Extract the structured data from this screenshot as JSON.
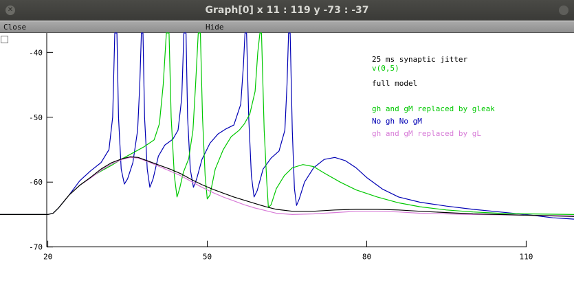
{
  "window": {
    "title": "Graph[0]  x 11 : 119  y -73 : -37",
    "close_icon": "close-icon",
    "maximize_icon": "maximize-icon"
  },
  "menu": {
    "close_label": "Close",
    "hide_label": "Hide"
  },
  "colors": {
    "black": "#000000",
    "green": "#00c800",
    "blue": "#0000b4",
    "pink": "#d77bd7"
  },
  "legend": {
    "jitter": "25 ms synaptic jitter",
    "v": "v(0,5)",
    "full": "full model",
    "gleak": "gh and gM replaced by gleak",
    "nogh": "No gh No gM",
    "gl": "gh and gM replaced by gL"
  },
  "chart_data": {
    "type": "line",
    "xlim": [
      11,
      119
    ],
    "ylim": [
      -73,
      -37
    ],
    "x_ticks": [
      "20",
      "50",
      "80",
      "110"
    ],
    "y_ticks": [
      "-40",
      "-50",
      "-60",
      "-70"
    ],
    "series": [
      {
        "name": "v(0,5)",
        "color": "#00c800",
        "points": [
          [
            11,
            -65
          ],
          [
            20,
            -65
          ],
          [
            21,
            -64.8
          ],
          [
            22,
            -64
          ],
          [
            24,
            -62
          ],
          [
            26,
            -60.5
          ],
          [
            28,
            -59.3
          ],
          [
            30,
            -58.3
          ],
          [
            32,
            -57.4
          ],
          [
            34,
            -56.4
          ],
          [
            36,
            -55.5
          ],
          [
            38,
            -54.6
          ],
          [
            40,
            -53.5
          ],
          [
            41,
            -51
          ],
          [
            41.7,
            -45
          ],
          [
            42.3,
            -37
          ],
          [
            42.8,
            -37
          ],
          [
            43.2,
            -50
          ],
          [
            43.8,
            -59
          ],
          [
            44.3,
            -62.3
          ],
          [
            44.8,
            -61
          ],
          [
            45.5,
            -58.5
          ],
          [
            46.5,
            -56.4
          ],
          [
            47.3,
            -52
          ],
          [
            47.8,
            -45
          ],
          [
            48.3,
            -37
          ],
          [
            48.7,
            -37
          ],
          [
            49.1,
            -50
          ],
          [
            49.6,
            -59
          ],
          [
            50,
            -62.6
          ],
          [
            50.5,
            -62
          ],
          [
            51.5,
            -58
          ],
          [
            53,
            -55
          ],
          [
            54.5,
            -53
          ],
          [
            56,
            -52
          ],
          [
            57,
            -51
          ],
          [
            58,
            -49.5
          ],
          [
            59,
            -46
          ],
          [
            59.5,
            -40
          ],
          [
            59.9,
            -37
          ],
          [
            60.2,
            -37
          ],
          [
            60.7,
            -52
          ],
          [
            61.2,
            -60
          ],
          [
            61.5,
            -63.9
          ],
          [
            62,
            -63.5
          ],
          [
            63,
            -61
          ],
          [
            64.5,
            -59
          ],
          [
            66,
            -57.8
          ],
          [
            68,
            -57.3
          ],
          [
            70,
            -57.6
          ],
          [
            72,
            -58.6
          ],
          [
            75,
            -60
          ],
          [
            78,
            -61.2
          ],
          [
            82,
            -62.3
          ],
          [
            86,
            -63.2
          ],
          [
            90,
            -63.8
          ],
          [
            95,
            -64.3
          ],
          [
            100,
            -64.6
          ],
          [
            105,
            -64.8
          ],
          [
            110,
            -64.9
          ],
          [
            119,
            -65
          ]
        ]
      },
      {
        "name": "No gh No gM",
        "color": "#0000b4",
        "points": [
          [
            11,
            -65
          ],
          [
            20,
            -65
          ],
          [
            21,
            -64.8
          ],
          [
            22,
            -64
          ],
          [
            24,
            -62
          ],
          [
            26,
            -59.8
          ],
          [
            28,
            -58.3
          ],
          [
            30,
            -57
          ],
          [
            31.5,
            -55
          ],
          [
            32.2,
            -50
          ],
          [
            32.6,
            -37
          ],
          [
            33,
            -37
          ],
          [
            33.3,
            -50
          ],
          [
            33.8,
            -58
          ],
          [
            34.4,
            -60.3
          ],
          [
            35,
            -59.5
          ],
          [
            36,
            -57
          ],
          [
            36.9,
            -52
          ],
          [
            37.3,
            -45
          ],
          [
            37.6,
            -37
          ],
          [
            37.9,
            -37
          ],
          [
            38.2,
            -50
          ],
          [
            38.7,
            -58
          ],
          [
            39.2,
            -60.8
          ],
          [
            39.8,
            -59.5
          ],
          [
            40.8,
            -56
          ],
          [
            42,
            -54.3
          ],
          [
            43.5,
            -53.4
          ],
          [
            44.5,
            -52
          ],
          [
            45.2,
            -47
          ],
          [
            45.6,
            -37
          ],
          [
            46,
            -37
          ],
          [
            46.3,
            -50
          ],
          [
            46.8,
            -58
          ],
          [
            47.4,
            -60.8
          ],
          [
            48,
            -59.5
          ],
          [
            49,
            -56.5
          ],
          [
            50.5,
            -54
          ],
          [
            52,
            -52.6
          ],
          [
            53.5,
            -51.8
          ],
          [
            55,
            -51.2
          ],
          [
            56.3,
            -48
          ],
          [
            56.8,
            -42
          ],
          [
            57.1,
            -37
          ],
          [
            57.4,
            -37
          ],
          [
            57.8,
            -50
          ],
          [
            58.3,
            -59
          ],
          [
            58.8,
            -62.3
          ],
          [
            59.4,
            -61.3
          ],
          [
            60.5,
            -58
          ],
          [
            62,
            -56.3
          ],
          [
            63.5,
            -55.2
          ],
          [
            64.6,
            -52
          ],
          [
            65,
            -45
          ],
          [
            65.3,
            -37
          ],
          [
            65.6,
            -37
          ],
          [
            66,
            -52
          ],
          [
            66.4,
            -61
          ],
          [
            66.8,
            -63.6
          ],
          [
            67.3,
            -62.6
          ],
          [
            68.3,
            -60
          ],
          [
            70,
            -57.8
          ],
          [
            72,
            -56.5
          ],
          [
            74,
            -56.2
          ],
          [
            76,
            -56.7
          ],
          [
            78,
            -57.8
          ],
          [
            80,
            -59.3
          ],
          [
            83,
            -61.1
          ],
          [
            86,
            -62.3
          ],
          [
            90,
            -63.1
          ],
          [
            95,
            -63.7
          ],
          [
            100,
            -64.2
          ],
          [
            105,
            -64.6
          ],
          [
            110,
            -65
          ],
          [
            115,
            -65.5
          ],
          [
            119,
            -65.7
          ]
        ]
      },
      {
        "name": "full model",
        "color": "#000000",
        "points": [
          [
            11,
            -65
          ],
          [
            20,
            -65
          ],
          [
            21,
            -64.8
          ],
          [
            22,
            -64
          ],
          [
            24,
            -62
          ],
          [
            26,
            -60.5
          ],
          [
            28,
            -59.3
          ],
          [
            30,
            -58
          ],
          [
            32,
            -57
          ],
          [
            34,
            -56.4
          ],
          [
            35.5,
            -56.1
          ],
          [
            37,
            -56.2
          ],
          [
            39,
            -56.8
          ],
          [
            41,
            -57.4
          ],
          [
            43,
            -58
          ],
          [
            45,
            -58.7
          ],
          [
            47,
            -59.6
          ],
          [
            49,
            -60.4
          ],
          [
            51,
            -61.1
          ],
          [
            53,
            -61.7
          ],
          [
            55,
            -62.3
          ],
          [
            57,
            -62.8
          ],
          [
            59,
            -63.3
          ],
          [
            61,
            -63.8
          ],
          [
            63,
            -64.2
          ],
          [
            66,
            -64.5
          ],
          [
            70,
            -64.5
          ],
          [
            74,
            -64.3
          ],
          [
            78,
            -64.2
          ],
          [
            82,
            -64.2
          ],
          [
            86,
            -64.3
          ],
          [
            90,
            -64.5
          ],
          [
            95,
            -64.7
          ],
          [
            100,
            -64.9
          ],
          [
            105,
            -65
          ],
          [
            110,
            -65.1
          ],
          [
            119,
            -65.3
          ]
        ]
      },
      {
        "name": "gh and gM replaced by gL",
        "color": "#d77bd7",
        "points": [
          [
            11,
            -65
          ],
          [
            20,
            -65
          ],
          [
            21,
            -64.8
          ],
          [
            22,
            -64
          ],
          [
            24,
            -62
          ],
          [
            26,
            -60.5
          ],
          [
            28,
            -59.4
          ],
          [
            30,
            -58.2
          ],
          [
            32,
            -57.2
          ],
          [
            34,
            -56.5
          ],
          [
            35.5,
            -56.2
          ],
          [
            37,
            -56.3
          ],
          [
            39,
            -56.9
          ],
          [
            41,
            -57.6
          ],
          [
            43,
            -58.3
          ],
          [
            45,
            -59
          ],
          [
            47,
            -59.9
          ],
          [
            49,
            -60.8
          ],
          [
            51,
            -61.6
          ],
          [
            53,
            -62.3
          ],
          [
            55,
            -62.9
          ],
          [
            57,
            -63.5
          ],
          [
            59,
            -64
          ],
          [
            61,
            -64.4
          ],
          [
            63,
            -64.8
          ],
          [
            66,
            -65
          ],
          [
            70,
            -64.9
          ],
          [
            74,
            -64.7
          ],
          [
            78,
            -64.5
          ],
          [
            82,
            -64.5
          ],
          [
            86,
            -64.6
          ],
          [
            90,
            -64.8
          ],
          [
            95,
            -64.9
          ],
          [
            100,
            -65
          ],
          [
            110,
            -65.1
          ],
          [
            119,
            -65.2
          ]
        ]
      }
    ]
  }
}
